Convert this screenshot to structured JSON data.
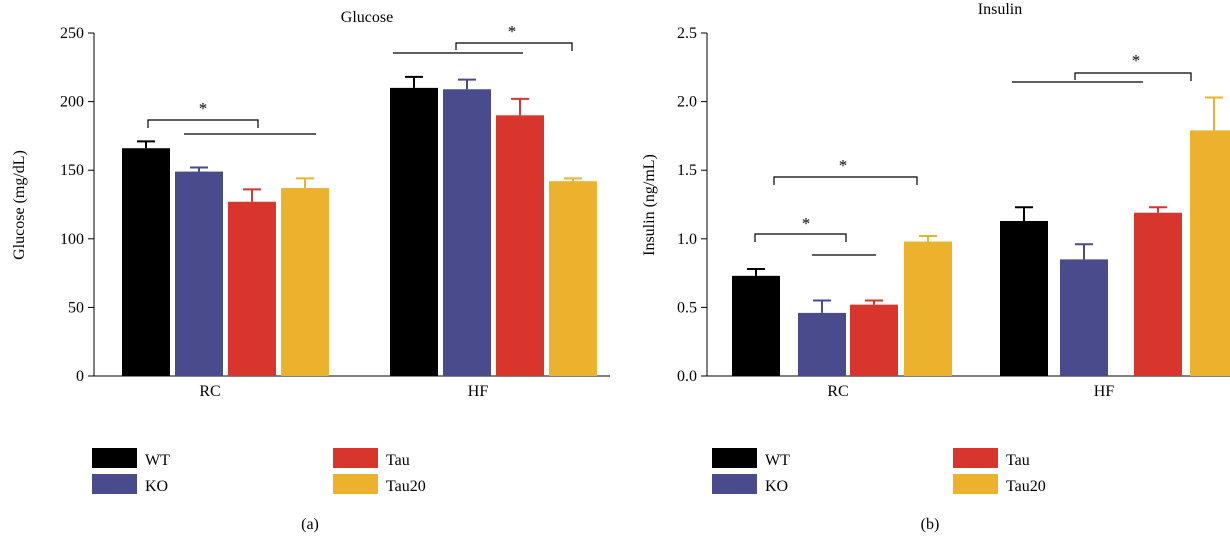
{
  "chart_data": [
    {
      "type": "bar",
      "title": "Glucose",
      "ylabel": "Glucose (mg/dL)",
      "xlabel": "",
      "panel_label": "(a)",
      "ylim": [
        0,
        250
      ],
      "yticks": [
        "0",
        "50",
        "100",
        "150",
        "200",
        "250"
      ],
      "categories": [
        "RC",
        "HF"
      ],
      "series": [
        {
          "name": "WT",
          "values": [
            166,
            210
          ],
          "errors": [
            5,
            8
          ]
        },
        {
          "name": "KO",
          "values": [
            149,
            209
          ],
          "errors": [
            3,
            7
          ]
        },
        {
          "name": "Tau",
          "values": [
            127,
            190
          ],
          "errors": [
            9,
            12
          ]
        },
        {
          "name": "Tau20",
          "values": [
            137,
            142
          ],
          "errors": [
            7,
            2
          ]
        }
      ],
      "significance_marks": [
        "*",
        "*"
      ],
      "grid": false,
      "legend_position": "bottom"
    },
    {
      "type": "bar",
      "title": "Insulin",
      "ylabel": "Insulin (ng/mL)",
      "xlabel": "",
      "panel_label": "(b)",
      "ylim": [
        0,
        2.5
      ],
      "yticks": [
        "0.0",
        "0.5",
        "1.0",
        "1.5",
        "2.0",
        "2.5"
      ],
      "categories": [
        "RC",
        "HF"
      ],
      "series": [
        {
          "name": "WT",
          "values": [
            0.73,
            1.13
          ],
          "errors": [
            0.05,
            0.1
          ]
        },
        {
          "name": "KO",
          "values": [
            0.46,
            0.85
          ],
          "errors": [
            0.09,
            0.11
          ]
        },
        {
          "name": "Tau",
          "values": [
            0.52,
            1.19
          ],
          "errors": [
            0.03,
            0.04
          ]
        },
        {
          "name": "Tau20",
          "values": [
            0.98,
            1.79
          ],
          "errors": [
            0.04,
            0.24
          ]
        }
      ],
      "significance_marks": [
        "*",
        "*",
        "*"
      ],
      "grid": false,
      "legend_position": "bottom"
    }
  ],
  "colors": {
    "WT": "#000000",
    "KO": "#4a4b8c",
    "Tau": "#d8352c",
    "Tau20": "#ecb22e"
  }
}
